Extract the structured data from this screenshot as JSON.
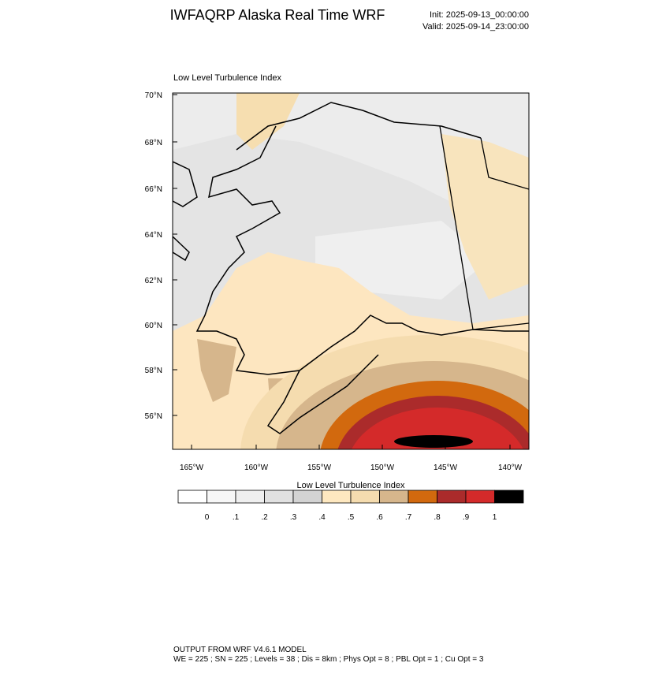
{
  "header": {
    "title": "IWFAQRP Alaska Real Time WRF",
    "init": "Init: 2025-09-13_00:00:00",
    "valid": "Valid: 2025-09-14_23:00:00"
  },
  "map": {
    "title": "Low Level Turbulence Index",
    "lat_labels": [
      "70°N",
      "68°N",
      "66°N",
      "64°N",
      "62°N",
      "60°N",
      "58°N",
      "56°N"
    ],
    "lon_labels": [
      "165°W",
      "160°W",
      "155°W",
      "150°W",
      "145°W",
      "140°W"
    ]
  },
  "colorbar": {
    "title": "Low Level Turbulence Index",
    "colors": [
      "#ffffff",
      "#f7f7f7",
      "#efefef",
      "#e1e1e1",
      "#d3d3d3",
      "#fee8c0",
      "#f5dcaf",
      "#d6b68c",
      "#d2690e",
      "#ab2b2b",
      "#d42a2a",
      "#000000"
    ],
    "labels": [
      "0",
      ".1",
      ".2",
      ".3",
      ".4",
      ".5",
      ".6",
      ".7",
      ".8",
      ".9",
      "1"
    ]
  },
  "footer": {
    "line1": "OUTPUT FROM WRF V4.6.1 MODEL",
    "line2": "WE = 225 ; SN = 225 ; Levels = 38 ; Dis = 8km ; Phys Opt = 8 ; PBL Opt = 1 ; Cu Opt = 3"
  }
}
